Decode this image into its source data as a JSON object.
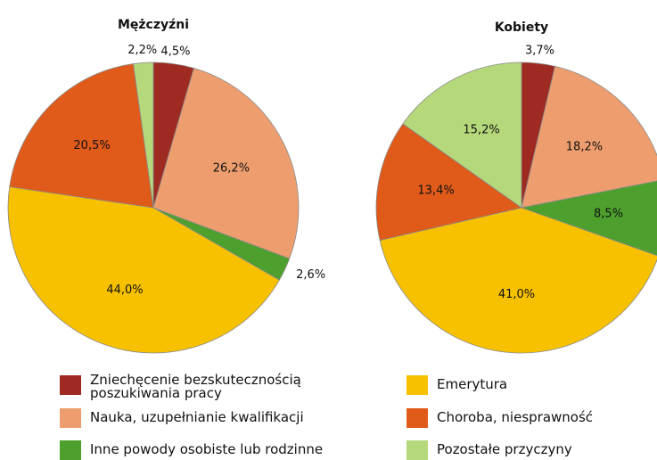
{
  "chart_data": [
    {
      "type": "pie",
      "title": "Mężczyźni",
      "categories": [
        "Zniechęcenie bezskutecznością poszukiwania pracy",
        "Nauka, uzupełnianie kwalifikacji",
        "Inne powody osobiste lub rodzinne",
        "Emerytura",
        "Choroba, niesprawność",
        "Pozostałe przyczyny"
      ],
      "values": [
        4.5,
        26.2,
        2.6,
        44.0,
        20.5,
        2.2
      ],
      "value_labels": [
        "4,5%",
        "26,2%",
        "2,6%",
        "44,0%",
        "20,5%",
        "2,2%"
      ],
      "colors": [
        "#9e2a22",
        "#ee9e6e",
        "#4ea02e",
        "#f7c100",
        "#e05a1a",
        "#b5d97a"
      ]
    },
    {
      "type": "pie",
      "title": "Kobiety",
      "categories": [
        "Zniechęcenie bezskutecznością poszukiwania pracy",
        "Nauka, uzupełnianie kwalifikacji",
        "Inne powody osobiste lub rodzinne",
        "Emerytura",
        "Choroba, niesprawność",
        "Pozostałe przyczyny"
      ],
      "values": [
        3.7,
        18.2,
        8.5,
        41.0,
        13.4,
        15.2
      ],
      "value_labels": [
        "3,7%",
        "18,2%",
        "8,5%",
        "41,0%",
        "13,4%",
        "15,2%"
      ],
      "colors": [
        "#9e2a22",
        "#ee9e6e",
        "#4ea02e",
        "#f7c100",
        "#e05a1a",
        "#b5d97a"
      ]
    }
  ]
}
